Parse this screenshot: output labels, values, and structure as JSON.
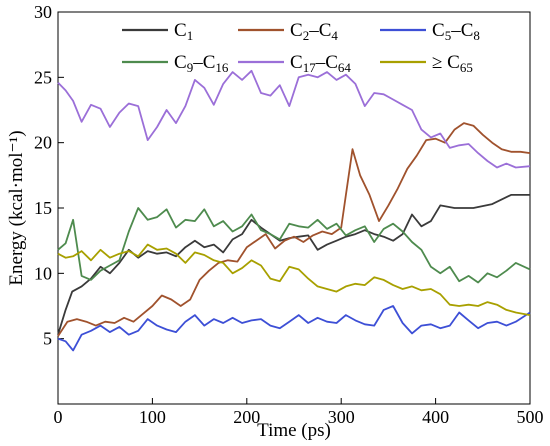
{
  "chart_data": {
    "type": "line",
    "xlabel": "Time (ps)",
    "ylabel": "Energy (kcal·mol⁻¹)",
    "xlim": [
      0,
      500
    ],
    "ylim": [
      0,
      30
    ],
    "xticks": [
      0,
      100,
      200,
      300,
      400,
      500
    ],
    "yticks": [
      5,
      10,
      15,
      20,
      25,
      30
    ],
    "grid": false,
    "legend_position": "top",
    "series": [
      {
        "name": "C1",
        "legend_parts": [
          {
            "t": "C"
          },
          {
            "t": "1",
            "sub": true
          }
        ],
        "color": "#3a3a3a",
        "x": [
          0,
          8,
          15,
          25,
          35,
          45,
          55,
          65,
          75,
          85,
          95,
          105,
          115,
          125,
          135,
          145,
          155,
          165,
          175,
          185,
          195,
          205,
          215,
          225,
          235,
          245,
          255,
          265,
          275,
          285,
          295,
          305,
          315,
          325,
          335,
          345,
          355,
          365,
          375,
          385,
          395,
          405,
          420,
          440,
          460,
          480,
          500
        ],
        "y": [
          5.3,
          7.2,
          8.6,
          9.0,
          9.6,
          10.5,
          10.0,
          10.8,
          11.8,
          11.2,
          11.7,
          11.5,
          11.6,
          11.3,
          12.0,
          12.5,
          12.0,
          12.2,
          11.6,
          12.6,
          13.0,
          14.1,
          13.5,
          13.0,
          12.5,
          12.7,
          12.8,
          12.9,
          11.8,
          12.2,
          12.5,
          12.8,
          13.0,
          13.3,
          13.0,
          12.8,
          12.5,
          13.0,
          14.5,
          13.6,
          14.0,
          15.2,
          15.0,
          15.0,
          15.3,
          16.0,
          16.0
        ]
      },
      {
        "name": "C2–C4",
        "legend_parts": [
          {
            "t": "C"
          },
          {
            "t": "2",
            "sub": true
          },
          {
            "t": "–C"
          },
          {
            "t": "4",
            "sub": true
          }
        ],
        "color": "#a0522d",
        "x": [
          0,
          10,
          20,
          30,
          40,
          50,
          60,
          70,
          80,
          90,
          100,
          110,
          120,
          130,
          140,
          150,
          160,
          170,
          180,
          190,
          200,
          210,
          220,
          230,
          240,
          250,
          260,
          270,
          280,
          290,
          300,
          305,
          312,
          320,
          330,
          340,
          350,
          360,
          370,
          380,
          390,
          400,
          410,
          420,
          430,
          440,
          450,
          460,
          470,
          480,
          490,
          500
        ],
        "y": [
          5.2,
          6.3,
          6.5,
          6.3,
          6.0,
          6.3,
          6.2,
          6.6,
          6.3,
          6.9,
          7.5,
          8.3,
          8.0,
          7.5,
          8.0,
          9.5,
          10.2,
          10.8,
          11.0,
          10.9,
          12.0,
          12.5,
          13.0,
          11.9,
          12.5,
          12.8,
          12.4,
          12.9,
          13.2,
          13.0,
          13.5,
          16.0,
          19.5,
          17.5,
          16.0,
          14.0,
          15.2,
          16.5,
          18.0,
          19.0,
          20.2,
          20.3,
          20.0,
          21.0,
          21.5,
          21.3,
          20.6,
          20.0,
          19.5,
          19.3,
          19.3,
          19.2
        ]
      },
      {
        "name": "C5–C8",
        "legend_parts": [
          {
            "t": "C"
          },
          {
            "t": "5",
            "sub": true
          },
          {
            "t": "–C"
          },
          {
            "t": "8",
            "sub": true
          }
        ],
        "color": "#3d4fd6",
        "x": [
          0,
          8,
          16,
          25,
          35,
          45,
          55,
          65,
          75,
          85,
          95,
          105,
          115,
          125,
          135,
          145,
          155,
          165,
          175,
          185,
          195,
          205,
          215,
          225,
          235,
          245,
          255,
          265,
          275,
          285,
          295,
          305,
          315,
          325,
          335,
          345,
          355,
          365,
          375,
          385,
          395,
          405,
          415,
          425,
          435,
          445,
          455,
          465,
          475,
          485,
          500
        ],
        "y": [
          5.0,
          4.8,
          4.1,
          5.3,
          5.6,
          6.0,
          5.5,
          5.9,
          5.3,
          5.6,
          6.5,
          6.0,
          5.7,
          5.5,
          6.3,
          6.8,
          6.0,
          6.5,
          6.2,
          6.6,
          6.2,
          6.4,
          6.5,
          6.0,
          5.8,
          6.3,
          6.8,
          6.2,
          6.6,
          6.3,
          6.2,
          6.8,
          6.4,
          6.1,
          6.0,
          7.2,
          7.5,
          6.2,
          5.4,
          6.0,
          6.1,
          5.8,
          6.0,
          7.0,
          6.4,
          5.8,
          6.2,
          6.3,
          6.0,
          6.3,
          7.0
        ]
      },
      {
        "name": "C9–C16",
        "legend_parts": [
          {
            "t": "C"
          },
          {
            "t": "9",
            "sub": true
          },
          {
            "t": "–C"
          },
          {
            "t": "16",
            "sub": true
          }
        ],
        "color": "#4e8b4e",
        "x": [
          0,
          8,
          16,
          25,
          35,
          45,
          55,
          65,
          75,
          85,
          95,
          105,
          115,
          125,
          135,
          145,
          155,
          165,
          175,
          185,
          195,
          205,
          215,
          225,
          235,
          245,
          255,
          265,
          275,
          285,
          295,
          305,
          315,
          325,
          335,
          345,
          355,
          365,
          375,
          385,
          395,
          405,
          415,
          425,
          435,
          445,
          455,
          465,
          475,
          485,
          500
        ],
        "y": [
          11.8,
          12.3,
          14.1,
          9.8,
          9.5,
          10.2,
          10.6,
          11.0,
          13.2,
          15.0,
          14.1,
          14.3,
          14.9,
          13.5,
          14.1,
          14.0,
          14.9,
          13.6,
          14.0,
          13.2,
          13.6,
          14.5,
          13.3,
          13.0,
          12.6,
          13.8,
          13.6,
          13.5,
          14.1,
          13.4,
          13.8,
          12.9,
          13.3,
          13.6,
          12.4,
          13.4,
          13.8,
          13.2,
          12.4,
          11.8,
          10.5,
          10.0,
          10.5,
          9.4,
          9.8,
          9.3,
          10.0,
          9.7,
          10.2,
          10.8,
          10.3
        ]
      },
      {
        "name": "C17–C64",
        "legend_parts": [
          {
            "t": "C"
          },
          {
            "t": "17",
            "sub": true
          },
          {
            "t": "–C"
          },
          {
            "t": "64",
            "sub": true
          }
        ],
        "color": "#9b6fd8",
        "x": [
          0,
          8,
          16,
          25,
          35,
          45,
          55,
          65,
          75,
          85,
          95,
          105,
          115,
          125,
          135,
          145,
          155,
          165,
          175,
          185,
          195,
          205,
          215,
          225,
          235,
          245,
          255,
          265,
          275,
          285,
          295,
          305,
          315,
          325,
          335,
          345,
          355,
          365,
          375,
          385,
          395,
          405,
          415,
          425,
          435,
          445,
          455,
          465,
          475,
          485,
          500
        ],
        "y": [
          24.6,
          24.0,
          23.2,
          21.6,
          22.9,
          22.6,
          21.2,
          22.3,
          23.0,
          22.8,
          20.2,
          21.2,
          22.5,
          21.5,
          22.8,
          24.8,
          24.2,
          22.9,
          24.5,
          25.4,
          24.8,
          25.5,
          23.8,
          23.6,
          24.4,
          22.8,
          25.0,
          25.2,
          25.0,
          25.4,
          24.8,
          25.2,
          24.5,
          22.8,
          23.8,
          23.7,
          23.3,
          22.9,
          22.5,
          21.0,
          20.4,
          20.7,
          19.6,
          19.8,
          19.9,
          19.2,
          18.6,
          18.1,
          18.4,
          18.1,
          18.2
        ]
      },
      {
        "name": "≥ C65",
        "legend_parts": [
          {
            "t": "≥ C"
          },
          {
            "t": "65",
            "sub": true
          }
        ],
        "color": "#a8a000",
        "x": [
          0,
          8,
          16,
          25,
          35,
          45,
          55,
          65,
          75,
          85,
          95,
          105,
          115,
          125,
          135,
          145,
          155,
          165,
          175,
          185,
          195,
          205,
          215,
          225,
          235,
          245,
          255,
          265,
          275,
          285,
          295,
          305,
          315,
          325,
          335,
          345,
          355,
          365,
          375,
          385,
          395,
          405,
          415,
          425,
          435,
          445,
          455,
          465,
          475,
          485,
          500
        ],
        "y": [
          11.5,
          11.2,
          11.3,
          11.7,
          11.0,
          11.8,
          11.2,
          11.5,
          11.7,
          11.3,
          12.2,
          11.8,
          11.9,
          11.5,
          10.8,
          11.6,
          11.4,
          11.0,
          10.8,
          10.0,
          10.4,
          11.0,
          10.6,
          9.6,
          9.4,
          10.5,
          10.3,
          9.6,
          9.0,
          8.8,
          8.6,
          9.0,
          9.2,
          9.1,
          9.7,
          9.5,
          9.1,
          8.8,
          9.0,
          8.7,
          8.8,
          8.4,
          7.6,
          7.5,
          7.6,
          7.5,
          7.8,
          7.6,
          7.2,
          7.0,
          6.8
        ]
      }
    ]
  }
}
